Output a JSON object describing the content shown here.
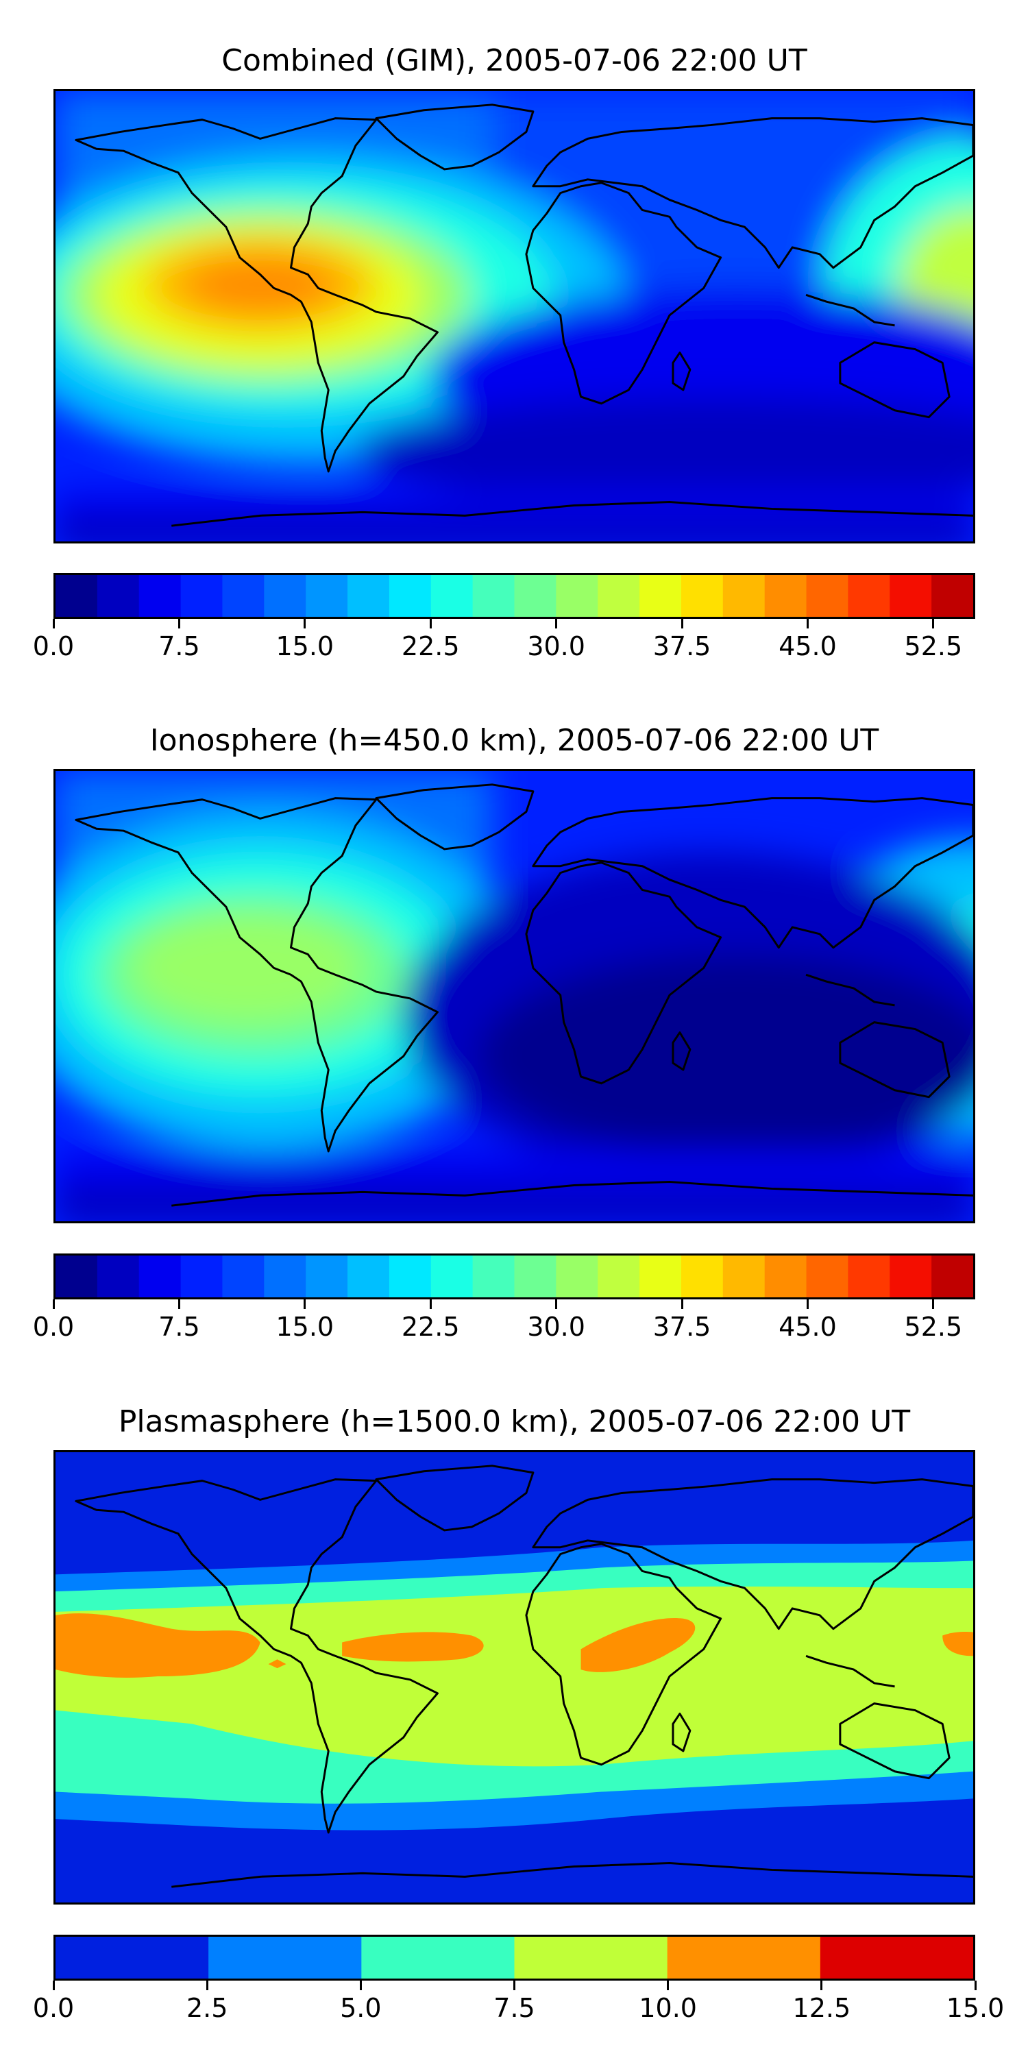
{
  "panels": [
    {
      "title": "Combined (GIM), 2005-07-06 22:00 UT",
      "colorbar": {
        "min": 0.0,
        "max": 55.0,
        "boundaries": [
          0,
          2.5,
          5,
          7.5,
          10,
          12.5,
          15,
          17.5,
          20,
          22.5,
          25,
          27.5,
          30,
          32.5,
          35,
          37.5,
          40,
          42.5,
          45,
          47.5,
          50,
          52.5,
          55
        ],
        "tick_labels": [
          "0.0",
          "7.5",
          "15.0",
          "22.5",
          "30.0",
          "37.5",
          "45.0",
          "52.5"
        ],
        "tick_values": [
          0,
          7.5,
          15,
          22.5,
          30,
          37.5,
          45,
          52.5
        ]
      }
    },
    {
      "title": "Ionosphere  (h=450.0 km), 2005-07-06 22:00 UT",
      "colorbar": {
        "min": 0.0,
        "max": 55.0,
        "boundaries": [
          0,
          2.5,
          5,
          7.5,
          10,
          12.5,
          15,
          17.5,
          20,
          22.5,
          25,
          27.5,
          30,
          32.5,
          35,
          37.5,
          40,
          42.5,
          45,
          47.5,
          50,
          52.5,
          55
        ],
        "tick_labels": [
          "0.0",
          "7.5",
          "15.0",
          "22.5",
          "30.0",
          "37.5",
          "45.0",
          "52.5"
        ],
        "tick_values": [
          0,
          7.5,
          15,
          22.5,
          30,
          37.5,
          45,
          52.5
        ]
      }
    },
    {
      "title": "Plasmasphere (h=1500.0 km), 2005-07-06 22:00 UT",
      "colorbar": {
        "min": 0.0,
        "max": 15.0,
        "boundaries": [
          0,
          2.5,
          5,
          7.5,
          10,
          12.5,
          15
        ],
        "tick_labels": [
          "0.0",
          "2.5",
          "5.0",
          "7.5",
          "10.0",
          "12.5",
          "15.0"
        ],
        "tick_values": [
          0,
          2.5,
          5,
          7.5,
          10,
          12.5,
          15
        ]
      }
    }
  ],
  "colors": {
    "jet22": [
      "#00008f",
      "#0000c0",
      "#0000f0",
      "#0020ff",
      "#0044ff",
      "#0070ff",
      "#0095ff",
      "#00bfff",
      "#00e8ff",
      "#1affe5",
      "#45ffbb",
      "#6dff93",
      "#99ff66",
      "#c0ff3f",
      "#e8ff16",
      "#ffe000",
      "#ffb900",
      "#ff8d00",
      "#ff6600",
      "#ff3900",
      "#f40e00",
      "#c00000",
      "#8b0000"
    ],
    "jet6": [
      "#0020e0",
      "#0080ff",
      "#38ffc0",
      "#c0ff38",
      "#ff9000",
      "#dd0000"
    ],
    "coastline": "#000000"
  }
}
